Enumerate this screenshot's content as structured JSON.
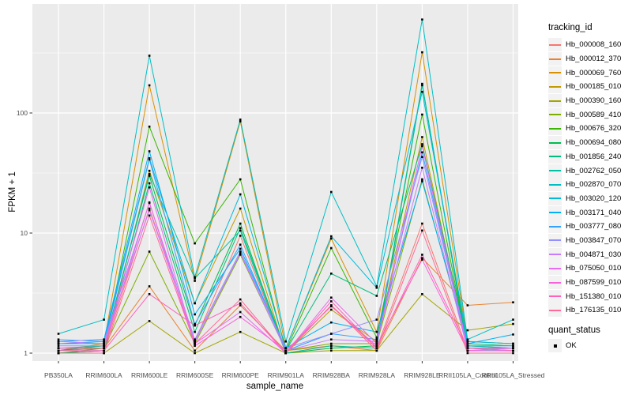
{
  "axes": {
    "x_title": "sample_name",
    "y_title": "FPKM + 1"
  },
  "chart_data": {
    "type": "line",
    "xlabel": "sample_name",
    "ylabel": "FPKM + 1",
    "y_scale": "log10",
    "ylim": [
      0.86,
      810
    ],
    "y_ticks": [
      1,
      10,
      100
    ],
    "y_minor_ticks": [
      3.1623,
      31.623,
      316.23
    ],
    "grid": true,
    "legend_position": "right",
    "panel_bg": "#EBEBEB",
    "gridline_color": "#FFFFFF",
    "axis_text_color": "#4D4D4D",
    "point_color": "#000000",
    "point_marker": "square",
    "legend_title": "tracking_id",
    "legend2_title": "quant_status",
    "legend2_items": [
      {
        "label": "OK",
        "marker": "black-square"
      }
    ],
    "categories": [
      "PB350LA",
      "RRIM600LA",
      "RRIM600LE",
      "RRIM600SE",
      "RRIM600PE",
      "RRIM901LA",
      "RRIM928BA",
      "RRIM928LA",
      "RRIM928LE",
      "RRII105LA_Control",
      "RRII105LA_Stressed"
    ],
    "series": [
      {
        "name": "Hb_000008_160",
        "color": "#F8766D",
        "values": [
          1.0,
          1.05,
          16,
          1.25,
          9.5,
          1.0,
          2.5,
          1.1,
          12,
          1.05,
          1.05
        ]
      },
      {
        "name": "Hb_000012_370",
        "color": "#EA8331",
        "values": [
          1.1,
          1.1,
          3.6,
          1.05,
          2.5,
          1.05,
          1.15,
          1.05,
          6.2,
          2.5,
          2.65
        ]
      },
      {
        "name": "Hb_000069_760",
        "color": "#D89000",
        "values": [
          1.05,
          1.2,
          170,
          4.0,
          85,
          1.1,
          9.0,
          1.5,
          320,
          1.25,
          1.2
        ]
      },
      {
        "name": "Hb_000185_010",
        "color": "#C09B00",
        "values": [
          1.0,
          1.05,
          33,
          2.6,
          16,
          1.0,
          2.3,
          1.25,
          63,
          1.1,
          1.1
        ]
      },
      {
        "name": "Hb_000390_160",
        "color": "#A3A500",
        "values": [
          1.0,
          1.0,
          1.85,
          1.0,
          1.5,
          1.0,
          1.05,
          1.05,
          3.1,
          1.55,
          1.75
        ]
      },
      {
        "name": "Hb_000589_410",
        "color": "#7CAE00",
        "values": [
          1.05,
          1.1,
          7.0,
          1.2,
          6.6,
          1.05,
          1.2,
          1.2,
          28,
          1.15,
          1.1
        ]
      },
      {
        "name": "Hb_000676_320",
        "color": "#39B600",
        "values": [
          1.0,
          1.1,
          77,
          8.2,
          28,
          1.05,
          7.5,
          1.35,
          97,
          1.1,
          1.1
        ]
      },
      {
        "name": "Hb_000694_080",
        "color": "#00BB4E",
        "values": [
          1.05,
          1.15,
          30,
          1.7,
          12,
          1.0,
          1.1,
          1.15,
          175,
          1.05,
          1.05
        ]
      },
      {
        "name": "Hb_001856_240",
        "color": "#00BF7D",
        "values": [
          1.0,
          1.05,
          26,
          1.5,
          11,
          1.05,
          4.6,
          3.0,
          55,
          1.2,
          1.15
        ]
      },
      {
        "name": "Hb_002762_050",
        "color": "#00C1A3",
        "values": [
          1.1,
          1.15,
          31,
          4.2,
          10.5,
          1.0,
          1.15,
          1.1,
          170,
          1.15,
          1.1
        ]
      },
      {
        "name": "Hb_002870_070",
        "color": "#00BFC4",
        "values": [
          1.45,
          1.9,
          300,
          4.3,
          88,
          1.25,
          22,
          3.6,
          600,
          1.3,
          1.9
        ]
      },
      {
        "name": "Hb_003020_120",
        "color": "#00BBDA",
        "values": [
          1.2,
          1.25,
          42,
          2.6,
          21,
          1.1,
          9.4,
          3.5,
          150,
          1.25,
          1.2
        ]
      },
      {
        "name": "Hb_003171_040",
        "color": "#00B0F6",
        "values": [
          1.25,
          1.3,
          48,
          2.1,
          7.4,
          1.1,
          1.8,
          1.5,
          27,
          1.2,
          1.43
        ]
      },
      {
        "name": "Hb_003777_080",
        "color": "#35A2FF",
        "values": [
          1.2,
          1.2,
          41,
          1.75,
          8.0,
          1.05,
          1.45,
          1.3,
          47,
          1.15,
          1.15
        ]
      },
      {
        "name": "Hb_003847_070",
        "color": "#9590FF",
        "values": [
          1.3,
          1.25,
          17.8,
          1.3,
          7.0,
          1.1,
          1.45,
          1.9,
          43,
          1.1,
          1.1
        ]
      },
      {
        "name": "Hb_004871_030",
        "color": "#C77CFF",
        "values": [
          1.25,
          1.2,
          15.5,
          1.25,
          6.8,
          1.05,
          1.3,
          1.25,
          35,
          1.05,
          1.05
        ]
      },
      {
        "name": "Hb_075050_010",
        "color": "#E76BF3",
        "values": [
          1.15,
          1.15,
          24,
          1.2,
          2.2,
          1.0,
          2.9,
          1.2,
          53,
          1.1,
          1.05
        ]
      },
      {
        "name": "Hb_087599_010",
        "color": "#FA62DB",
        "values": [
          1.1,
          1.1,
          18,
          1.15,
          2.0,
          1.05,
          2.45,
          1.15,
          6.0,
          1.05,
          1.1
        ]
      },
      {
        "name": "Hb_151380_010",
        "color": "#FF62BC",
        "values": [
          1.05,
          1.05,
          3.1,
          1.7,
          2.6,
          1.0,
          2.7,
          1.1,
          6.6,
          1.1,
          1.05
        ]
      },
      {
        "name": "Hb_176135_010",
        "color": "#FF6A98",
        "values": [
          1.0,
          1.0,
          14,
          1.2,
          2.8,
          1.0,
          2.5,
          1.05,
          10.5,
          1.0,
          1.0
        ]
      }
    ]
  }
}
